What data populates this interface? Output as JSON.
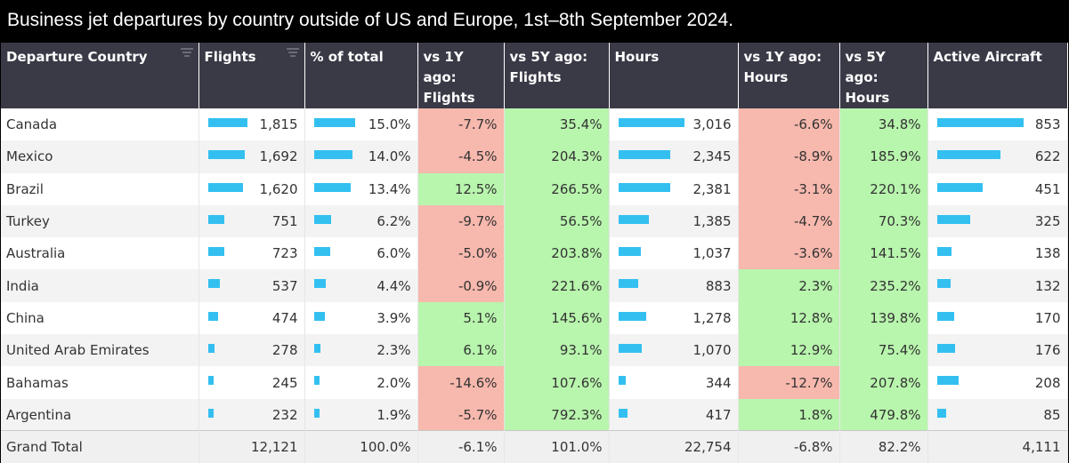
{
  "title": "Business jet departures by country outside of US and Europe, 1st–8th September 2024.",
  "colors": {
    "header_bg": "#3a3a47",
    "bar": "#33c0f0",
    "negative": "#f7b8ad",
    "positive": "#b8f5ad"
  },
  "columns": [
    {
      "line1": "Departure Country",
      "line2": "",
      "filter": true
    },
    {
      "line1": "Flights",
      "line2": "",
      "filter": true
    },
    {
      "line1": "% of total",
      "line2": "",
      "filter": false
    },
    {
      "line1": "vs 1Y ago:",
      "line2": "Flights",
      "filter": false
    },
    {
      "line1": "vs 5Y ago:",
      "line2": "Flights",
      "filter": false
    },
    {
      "line1": "Hours",
      "line2": "",
      "filter": false
    },
    {
      "line1": "vs 1Y ago:",
      "line2": "Hours",
      "filter": false
    },
    {
      "line1": "vs 5Y ago:",
      "line2": "Hours",
      "filter": false
    },
    {
      "line1": "Active Aircraft",
      "line2": "",
      "filter": false
    }
  ],
  "rows": [
    {
      "country": "Canada",
      "flights": "1,815",
      "flights_n": 1815,
      "pct": "15.0%",
      "pct_n": 15.0,
      "vs1y_flights": "-7.7%",
      "vs5y_flights": "35.4%",
      "hours": "3,016",
      "hours_n": 3016,
      "vs1y_hours": "-6.6%",
      "vs5y_hours": "34.8%",
      "aircraft": "853",
      "aircraft_n": 853
    },
    {
      "country": "Mexico",
      "flights": "1,692",
      "flights_n": 1692,
      "pct": "14.0%",
      "pct_n": 14.0,
      "vs1y_flights": "-4.5%",
      "vs5y_flights": "204.3%",
      "hours": "2,345",
      "hours_n": 2345,
      "vs1y_hours": "-8.9%",
      "vs5y_hours": "185.9%",
      "aircraft": "622",
      "aircraft_n": 622
    },
    {
      "country": "Brazil",
      "flights": "1,620",
      "flights_n": 1620,
      "pct": "13.4%",
      "pct_n": 13.4,
      "vs1y_flights": "12.5%",
      "vs5y_flights": "266.5%",
      "hours": "2,381",
      "hours_n": 2381,
      "vs1y_hours": "-3.1%",
      "vs5y_hours": "220.1%",
      "aircraft": "451",
      "aircraft_n": 451
    },
    {
      "country": "Turkey",
      "flights": "751",
      "flights_n": 751,
      "pct": "6.2%",
      "pct_n": 6.2,
      "vs1y_flights": "-9.7%",
      "vs5y_flights": "56.5%",
      "hours": "1,385",
      "hours_n": 1385,
      "vs1y_hours": "-4.7%",
      "vs5y_hours": "70.3%",
      "aircraft": "325",
      "aircraft_n": 325
    },
    {
      "country": "Australia",
      "flights": "723",
      "flights_n": 723,
      "pct": "6.0%",
      "pct_n": 6.0,
      "vs1y_flights": "-5.0%",
      "vs5y_flights": "203.8%",
      "hours": "1,037",
      "hours_n": 1037,
      "vs1y_hours": "-3.6%",
      "vs5y_hours": "141.5%",
      "aircraft": "138",
      "aircraft_n": 138
    },
    {
      "country": "India",
      "flights": "537",
      "flights_n": 537,
      "pct": "4.4%",
      "pct_n": 4.4,
      "vs1y_flights": "-0.9%",
      "vs5y_flights": "221.6%",
      "hours": "883",
      "hours_n": 883,
      "vs1y_hours": "2.3%",
      "vs5y_hours": "235.2%",
      "aircraft": "132",
      "aircraft_n": 132
    },
    {
      "country": "China",
      "flights": "474",
      "flights_n": 474,
      "pct": "3.9%",
      "pct_n": 3.9,
      "vs1y_flights": "5.1%",
      "vs5y_flights": "145.6%",
      "hours": "1,278",
      "hours_n": 1278,
      "vs1y_hours": "12.8%",
      "vs5y_hours": "139.8%",
      "aircraft": "170",
      "aircraft_n": 170
    },
    {
      "country": "United Arab Emirates",
      "flights": "278",
      "flights_n": 278,
      "pct": "2.3%",
      "pct_n": 2.3,
      "vs1y_flights": "6.1%",
      "vs5y_flights": "93.1%",
      "hours": "1,070",
      "hours_n": 1070,
      "vs1y_hours": "12.9%",
      "vs5y_hours": "75.4%",
      "aircraft": "176",
      "aircraft_n": 176
    },
    {
      "country": "Bahamas",
      "flights": "245",
      "flights_n": 245,
      "pct": "2.0%",
      "pct_n": 2.0,
      "vs1y_flights": "-14.6%",
      "vs5y_flights": "107.6%",
      "hours": "344",
      "hours_n": 344,
      "vs1y_hours": "-12.7%",
      "vs5y_hours": "207.8%",
      "aircraft": "208",
      "aircraft_n": 208
    },
    {
      "country": "Argentina",
      "flights": "232",
      "flights_n": 232,
      "pct": "1.9%",
      "pct_n": 1.9,
      "vs1y_flights": "-5.7%",
      "vs5y_flights": "792.3%",
      "hours": "417",
      "hours_n": 417,
      "vs1y_hours": "1.8%",
      "vs5y_hours": "479.8%",
      "aircraft": "85",
      "aircraft_n": 85
    }
  ],
  "total": {
    "label": "Grand Total",
    "flights": "12,121",
    "pct": "100.0%",
    "vs1y_flights": "-6.1%",
    "vs5y_flights": "101.0%",
    "hours": "22,754",
    "vs1y_hours": "-6.8%",
    "vs5y_hours": "82.2%",
    "aircraft": "4,111"
  }
}
